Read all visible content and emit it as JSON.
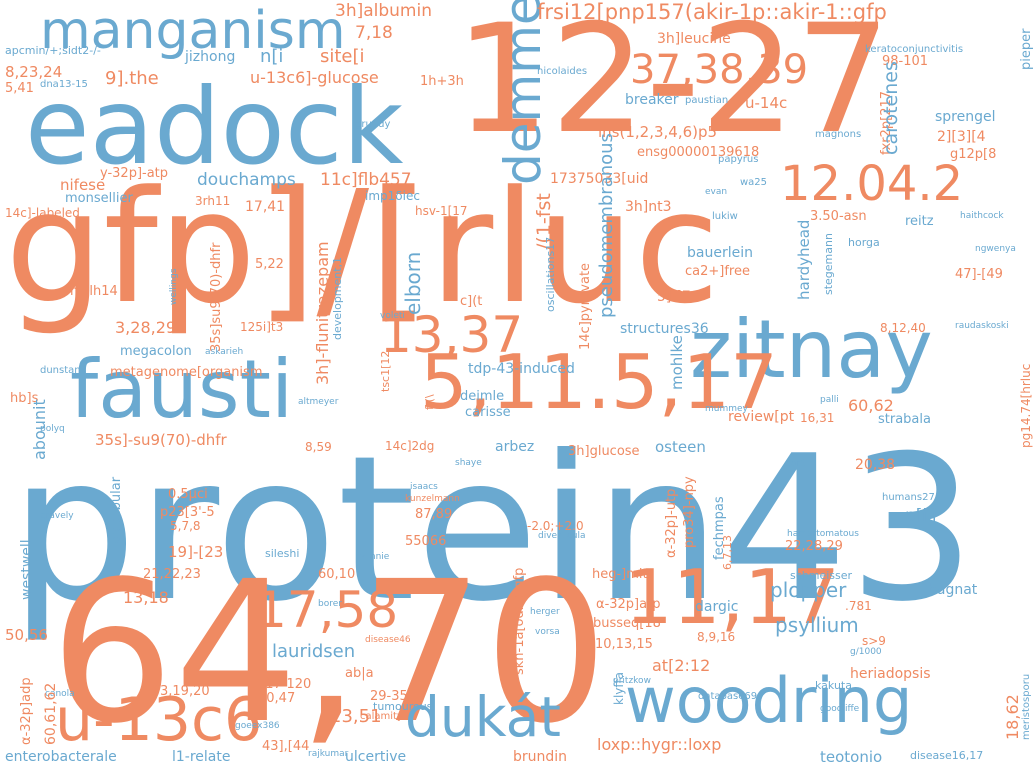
{
  "colors": {
    "blue": "#6aa9d0",
    "orange": "#ef8a62"
  },
  "words": [
    {
      "t": "protein43",
      "c": "blue"
    },
    {
      "t": "64,70",
      "c": "orange"
    },
    {
      "t": "gfp]/[rluc",
      "c": "orange"
    },
    {
      "t": "12-27",
      "c": "orange"
    },
    {
      "t": "eadock",
      "c": "blue"
    },
    {
      "t": "fausti",
      "c": "blue"
    },
    {
      "t": "zitnay",
      "c": "blue"
    },
    {
      "t": "5,11.5,17",
      "c": "orange"
    },
    {
      "t": "11,17",
      "c": "orange"
    },
    {
      "t": "woodring",
      "c": "blue"
    },
    {
      "t": "u-13c6",
      "c": "orange"
    },
    {
      "t": "dukát",
      "c": "blue"
    },
    {
      "t": "manganism",
      "c": "blue"
    },
    {
      "t": "17,58",
      "c": "orange"
    },
    {
      "t": "12.04.2",
      "c": "orange"
    },
    {
      "t": "13,37",
      "c": "orange"
    },
    {
      "t": "37,38,39",
      "c": "orange"
    },
    {
      "t": "demmel",
      "c": "blue"
    },
    {
      "t": "frsi12[pnp157(akir-1p::akir-1::gfp",
      "c": "orange"
    },
    {
      "t": "3h]albumin",
      "c": "orange"
    },
    {
      "t": "7,18",
      "c": "orange"
    },
    {
      "t": "site[i",
      "c": "orange"
    },
    {
      "t": "n[i",
      "c": "blue"
    },
    {
      "t": "u-13c6]-glucose",
      "c": "orange"
    },
    {
      "t": "9].the",
      "c": "orange"
    },
    {
      "t": "1h+3h",
      "c": "orange"
    },
    {
      "t": "jizhong",
      "c": "blue"
    },
    {
      "t": "apcmin/+;sidt2-/-",
      "c": "blue"
    },
    {
      "t": "8,23,24",
      "c": "orange"
    },
    {
      "t": "5,41",
      "c": "orange"
    },
    {
      "t": "dna13-15",
      "c": "blue"
    },
    {
      "t": "nicolaides",
      "c": "blue"
    },
    {
      "t": "keratoconjunctivitis",
      "c": "blue"
    },
    {
      "t": "3h]leucine",
      "c": "orange"
    },
    {
      "t": "98-101",
      "c": "orange"
    },
    {
      "t": "pieper",
      "c": "blue"
    },
    {
      "t": "fxr2p[217",
      "c": "orange"
    },
    {
      "t": "breaker",
      "c": "blue"
    },
    {
      "t": "paustian",
      "c": "blue"
    },
    {
      "t": "u-14c",
      "c": "orange"
    },
    {
      "t": "ins(1,2,3,4,6)p5",
      "c": "orange"
    },
    {
      "t": "ensg00000139618",
      "c": "orange"
    },
    {
      "t": "papyrus",
      "c": "blue"
    },
    {
      "t": "magnons",
      "c": "blue"
    },
    {
      "t": "carotenes",
      "c": "blue"
    },
    {
      "t": "sprengel",
      "c": "blue"
    },
    {
      "t": "2][3][4",
      "c": "orange"
    },
    {
      "t": "g12p[8",
      "c": "orange"
    },
    {
      "t": "y-32p]-atp",
      "c": "orange"
    },
    {
      "t": "nifese",
      "c": "orange"
    },
    {
      "t": "monsellier",
      "c": "blue"
    },
    {
      "t": "3rh11",
      "c": "orange"
    },
    {
      "t": "17,41",
      "c": "orange"
    },
    {
      "t": "douchamps",
      "c": "blue"
    },
    {
      "t": "11c]flb457",
      "c": "orange"
    },
    {
      "t": "17375033[uid",
      "c": "orange"
    },
    {
      "t": "3h]nt3",
      "c": "orange"
    },
    {
      "t": "hsv-1[17",
      "c": "orange"
    },
    {
      "t": "imp1δiec",
      "c": "blue"
    },
    {
      "t": "evan",
      "c": "blue"
    },
    {
      "t": "wa25",
      "c": "blue"
    },
    {
      "t": "3.50-asn",
      "c": "orange"
    },
    {
      "t": "reitz",
      "c": "blue"
    },
    {
      "t": "haithcock",
      "c": "blue"
    },
    {
      "t": "ngwenya",
      "c": "blue"
    },
    {
      "t": "14c]-labeled",
      "c": "orange"
    },
    {
      "t": "grundy",
      "c": "blue"
    },
    {
      "t": "lukiw",
      "c": "blue"
    },
    {
      "t": "horga",
      "c": "blue"
    },
    {
      "t": "bauerlein",
      "c": "blue"
    },
    {
      "t": "ca2+]free",
      "c": "orange"
    },
    {
      "t": "5]-[7",
      "c": "orange"
    },
    {
      "t": "47]-[49",
      "c": "orange"
    },
    {
      "t": "mslh14",
      "c": "orange"
    },
    {
      "t": "5,22",
      "c": "orange"
    },
    {
      "t": "c](t",
      "c": "orange"
    },
    {
      "t": "elborn",
      "c": "blue"
    },
    {
      "t": "/(1-fst",
      "c": "orange"
    },
    {
      "t": "pseudomembranous",
      "c": "blue"
    },
    {
      "t": "structures36",
      "c": "blue"
    },
    {
      "t": "8,12,40",
      "c": "orange"
    },
    {
      "t": "raudaskoski",
      "c": "blue"
    },
    {
      "t": "3,28,29",
      "c": "orange"
    },
    {
      "t": "125i]t3",
      "c": "orange"
    },
    {
      "t": "megacolon",
      "c": "blue"
    },
    {
      "t": "askarieh",
      "c": "blue"
    },
    {
      "t": "voleti",
      "c": "blue"
    },
    {
      "t": "metagenome[organism",
      "c": "orange"
    },
    {
      "t": "tdp-43-induced",
      "c": "blue"
    },
    {
      "t": "mohlke",
      "c": "blue"
    },
    {
      "t": "dunstan",
      "c": "blue"
    },
    {
      "t": "hb]s",
      "c": "orange"
    },
    {
      "t": "altmeyer",
      "c": "blue"
    },
    {
      "t": "deimle",
      "c": "blue"
    },
    {
      "t": "carisse",
      "c": "blue"
    },
    {
      "t": "60,62",
      "c": "orange"
    },
    {
      "t": "strabala",
      "c": "blue"
    },
    {
      "t": "polyq",
      "c": "blue"
    },
    {
      "t": "review[pt",
      "c": "orange"
    },
    {
      "t": "16,31",
      "c": "orange"
    },
    {
      "t": "mummey",
      "c": "blue"
    },
    {
      "t": "palli",
      "c": "blue"
    },
    {
      "t": "35s]-su9(70)-dhfr",
      "c": "orange"
    },
    {
      "t": "8,59",
      "c": "orange"
    },
    {
      "t": "arbez",
      "c": "blue"
    },
    {
      "t": "14c]2dg",
      "c": "orange"
    },
    {
      "t": "3h]glucose",
      "c": "orange"
    },
    {
      "t": "osteen",
      "c": "blue"
    },
    {
      "t": "ger2",
      "c": "blue"
    },
    {
      "t": "20,38",
      "c": "orange"
    },
    {
      "t": "shaye",
      "c": "blue"
    },
    {
      "t": "0.5μci",
      "c": "orange"
    },
    {
      "t": "p23[3'-5",
      "c": "orange"
    },
    {
      "t": "5,7,8",
      "c": "orange"
    },
    {
      "t": "isaacs",
      "c": "blue"
    },
    {
      "t": "kunzelmann",
      "c": "orange"
    },
    {
      "t": "87,89",
      "c": "orange"
    },
    {
      "t": "humans27",
      "c": "blue"
    },
    {
      "t": "p[iii",
      "c": "blue"
    },
    {
      "t": "gravely",
      "c": "blue"
    },
    {
      "t": "pretubular",
      "c": "blue"
    },
    {
      "t": "55066",
      "c": "orange"
    },
    {
      "t": "-2.0;+2.0",
      "c": "orange"
    },
    {
      "t": "diverticula",
      "c": "blue"
    },
    {
      "t": "hamartomatous",
      "c": "blue"
    },
    {
      "t": "22,28,29",
      "c": "orange"
    },
    {
      "t": "19]-[23",
      "c": "orange"
    },
    {
      "t": "21,22,23",
      "c": "orange"
    },
    {
      "t": "sileshi",
      "c": "blue"
    },
    {
      "t": "winnie",
      "c": "blue"
    },
    {
      "t": "60,10",
      "c": "orange"
    },
    {
      "t": "heg-]mit",
      "c": "orange"
    },
    {
      "t": "schmeisser",
      "c": "blue"
    },
    {
      "t": "bagnat",
      "c": "blue"
    },
    {
      "t": "13,18",
      "c": "orange"
    },
    {
      "t": "borer",
      "c": "blue"
    },
    {
      "t": "α-32p]atp",
      "c": "orange"
    },
    {
      "t": "dargic",
      "c": "blue"
    },
    {
      "t": ".781",
      "c": "orange"
    },
    {
      "t": "herger",
      "c": "blue"
    },
    {
      "t": "busseq[18",
      "c": "orange"
    },
    {
      "t": "plopper",
      "c": "blue"
    },
    {
      "t": "psyllium",
      "c": "blue"
    },
    {
      "t": "s>9",
      "c": "orange"
    },
    {
      "t": "g/1000",
      "c": "blue"
    },
    {
      "t": "50,56",
      "c": "orange"
    },
    {
      "t": "vorsa",
      "c": "blue"
    },
    {
      "t": "disease46",
      "c": "orange"
    },
    {
      "t": "10,13,15",
      "c": "orange"
    },
    {
      "t": "lauridsen",
      "c": "blue"
    },
    {
      "t": "ab|a",
      "c": "orange"
    },
    {
      "t": "8,9,16",
      "c": "orange"
    },
    {
      "t": "at[2:12",
      "c": "orange"
    },
    {
      "t": "heriadopsis",
      "c": "orange"
    },
    {
      "t": "canola",
      "c": "blue"
    },
    {
      "t": "3,19,20",
      "c": "orange"
    },
    {
      "t": "117-120",
      "c": "orange"
    },
    {
      "t": "40,47",
      "c": "orange"
    },
    {
      "t": "pritzkow",
      "c": "blue"
    },
    {
      "t": "database69",
      "c": "blue"
    },
    {
      "t": "kakuta",
      "c": "blue"
    },
    {
      "t": "29-35",
      "c": "orange"
    },
    {
      "t": "tumourous",
      "c": "blue"
    },
    {
      "t": "calamity",
      "c": "orange"
    },
    {
      "t": "goeex386",
      "c": "blue"
    },
    {
      "t": "goodliffe",
      "c": "blue"
    },
    {
      "t": "23,51",
      "c": "orange"
    },
    {
      "t": "43],[44",
      "c": "orange"
    },
    {
      "t": "loxp::hygr::loxp",
      "c": "orange"
    },
    {
      "t": "teotonio",
      "c": "blue"
    },
    {
      "t": "disease16,17",
      "c": "blue"
    },
    {
      "t": "enterobacterale",
      "c": "blue"
    },
    {
      "t": "l1-relate",
      "c": "blue"
    },
    {
      "t": "rajkumar",
      "c": "blue"
    },
    {
      "t": "ulcertive",
      "c": "blue"
    },
    {
      "t": "brundin",
      "c": "orange"
    },
    {
      "t": "abounit",
      "c": "blue"
    },
    {
      "t": "westwell",
      "c": "blue"
    },
    {
      "t": "α-32p]adp",
      "c": "orange"
    },
    {
      "t": "60,61,62",
      "c": "orange"
    },
    {
      "t": "wellings",
      "c": "blue"
    },
    {
      "t": "35s]su9(70)-dhfr",
      "c": "orange"
    },
    {
      "t": "3h]-flunitrazepam",
      "c": "orange"
    },
    {
      "t": "development,1",
      "c": "blue"
    },
    {
      "t": "tsc1[12",
      "c": "orange"
    },
    {
      "t": "f\\(\\",
      "c": "orange"
    },
    {
      "t": "oscillations17",
      "c": "blue"
    },
    {
      "t": "14c]pyruvate",
      "c": "orange"
    },
    {
      "t": "α-32p]-utp",
      "c": "orange"
    },
    {
      "t": "pro34]-npy",
      "c": "orange"
    },
    {
      "t": "fechmpas",
      "c": "blue"
    },
    {
      "t": "6,7,13",
      "c": "orange"
    },
    {
      "t": "skn-1a[δdbd]gfp",
      "c": "orange"
    },
    {
      "t": "klyffa",
      "c": "blue"
    },
    {
      "t": "hardyhead",
      "c": "blue"
    },
    {
      "t": "stegemann",
      "c": "blue"
    },
    {
      "t": "pg14.74[hrluc",
      "c": "orange"
    },
    {
      "t": "18,62",
      "c": "orange"
    },
    {
      "t": "meristosporu",
      "c": "blue"
    }
  ]
}
